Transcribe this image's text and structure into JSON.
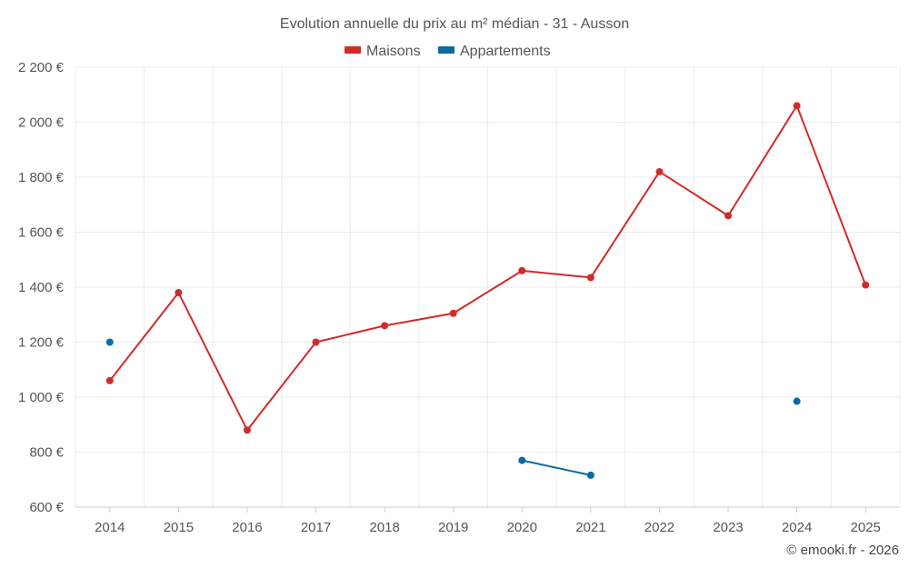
{
  "chart_data": {
    "type": "line",
    "title": "Evolution annuelle du prix au m² médian - 31 - Ausson",
    "categories": [
      "2014",
      "2015",
      "2016",
      "2017",
      "2018",
      "2019",
      "2020",
      "2021",
      "2022",
      "2023",
      "2024",
      "2025"
    ],
    "ylim": [
      600,
      2200
    ],
    "yticks": [
      600,
      800,
      1000,
      1200,
      1400,
      1600,
      1800,
      2000,
      2200
    ],
    "ytick_labels": [
      "600 €",
      "800 €",
      "1 000 €",
      "1 200 €",
      "1 400 €",
      "1 600 €",
      "1 800 €",
      "2 000 €",
      "2 200 €"
    ],
    "grid": true,
    "legend_position": "top-center",
    "series": [
      {
        "name": "Maisons",
        "color": "#d32a2a",
        "values": [
          1060,
          1380,
          880,
          1200,
          1260,
          1305,
          1460,
          1435,
          1820,
          1660,
          2060,
          1408
        ]
      },
      {
        "name": "Appartements",
        "color": "#0a6aa1",
        "values": [
          1200,
          null,
          null,
          null,
          null,
          null,
          770,
          716,
          null,
          null,
          985,
          null
        ]
      }
    ]
  },
  "credit": "© emooki.fr - 2026"
}
